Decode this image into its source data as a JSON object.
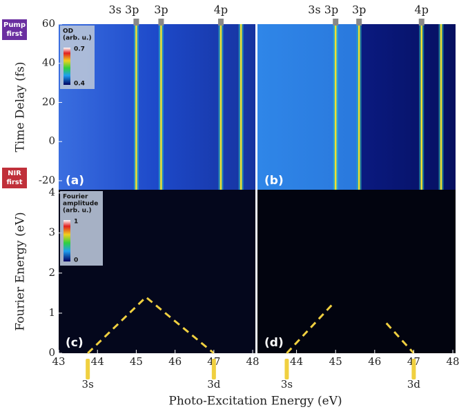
{
  "x_label": "Photo-Excitation Energy  (eV)",
  "badges": [
    {
      "line1": "Pump",
      "line2": "first",
      "color": "#6a2fa0"
    },
    {
      "line1": "NIR",
      "line2": "first",
      "color": "#c0303a"
    }
  ],
  "chart_data": [
    {
      "type": "heatmap",
      "label": "(a)",
      "y_label": "Time Delay (fs)",
      "xlim": [
        43,
        48.07
      ],
      "ylim": [
        -24.6,
        60
      ],
      "yticks": [
        -20,
        0,
        20,
        40,
        60
      ],
      "colorbar": {
        "title1": "OD",
        "title2": "(arb. u.)",
        "max": 0.7,
        "min": 0.4
      },
      "lines": [
        {
          "name": "3s 3p",
          "x": 45.0
        },
        {
          "name": "3p",
          "x": 45.64
        },
        {
          "name": "4p",
          "x": 47.18
        },
        {
          "name": null,
          "x": 47.7
        }
      ]
    },
    {
      "type": "heatmap",
      "label": "(b)",
      "xlim": [
        43,
        48.07
      ],
      "ylim": [
        -24.6,
        60
      ],
      "lines": [
        {
          "name": "3s 3p",
          "x": 45.0
        },
        {
          "name": "3p",
          "x": 45.6
        },
        {
          "name": "4p",
          "x": 47.2
        },
        {
          "name": null,
          "x": 47.7
        }
      ]
    },
    {
      "type": "heatmap",
      "label": "(c)",
      "y_label": "Fourier Energy (eV)",
      "xlim": [
        43,
        48.07
      ],
      "ylim": [
        0,
        4.08
      ],
      "yticks": [
        0,
        1,
        2,
        3,
        4
      ],
      "xticks": [
        43,
        44,
        45,
        46,
        47,
        48
      ],
      "colorbar": {
        "title1": "Fourier",
        "title2": "amplitude",
        "title3": "(arb. u.)",
        "max": 1,
        "min": 0
      },
      "guide_x": [
        43.75,
        45.25,
        47.0
      ],
      "guide_y": [
        0,
        1.4,
        0
      ],
      "markers": [
        {
          "text": "3s",
          "x": 43.75
        },
        {
          "text": "3d",
          "x": 47.0
        }
      ]
    },
    {
      "type": "heatmap",
      "label": "(d)",
      "xlim": [
        43,
        48.07
      ],
      "ylim": [
        0,
        4.08
      ],
      "xticks": [
        44,
        45,
        46,
        47,
        48
      ],
      "guide_x": [
        43.75,
        44.9
      ],
      "guide_y": [
        0,
        1.2
      ],
      "guide2_x": [
        46.3,
        47.0
      ],
      "guide2_y": [
        0.75,
        0
      ],
      "markers": [
        {
          "text": "3s",
          "x": 43.75
        },
        {
          "text": "3d",
          "x": 47.0
        }
      ]
    }
  ]
}
